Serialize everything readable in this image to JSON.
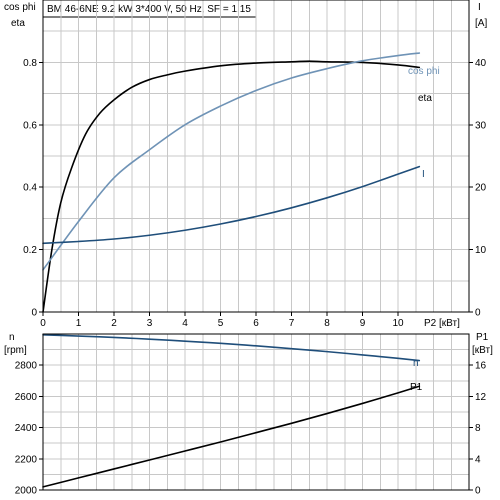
{
  "header": {
    "title": "BM 46-6NE   9.2 kW   3*400 V, 50 Hz, SF = 1.15"
  },
  "colors": {
    "eta": "#000000",
    "cos_phi": "#6f93b6",
    "current": "#1f4e7a",
    "speed": "#1f4e7a",
    "power": "#000000",
    "grid": "#c8c8c8"
  },
  "chart_data": [
    {
      "type": "line",
      "xlabel": "P2 [кВт]",
      "ylabel_left": [
        "cos phi",
        "eta"
      ],
      "ylabel_right": [
        "I",
        "[A]"
      ],
      "xlim": [
        0,
        12
      ],
      "ylim_left": [
        0,
        1.0
      ],
      "ylim_right": [
        0,
        50
      ],
      "xticks": [
        0,
        1,
        2,
        3,
        4,
        5,
        6,
        7,
        8,
        9,
        10
      ],
      "yticks_left": [
        0,
        0.2,
        0.4,
        0.6,
        0.8
      ],
      "yticks_right": [
        0,
        10,
        20,
        30,
        40
      ],
      "grid": true,
      "series": [
        {
          "name": "eta",
          "axis": "left",
          "x": [
            0,
            0.25,
            0.5,
            0.8,
            1.2,
            1.6,
            2.0,
            2.5,
            3.0,
            3.5,
            4.0,
            5.0,
            6.0,
            7.0,
            7.5,
            8.0,
            9.0,
            10.0,
            10.6
          ],
          "y": [
            0,
            0.2,
            0.35,
            0.46,
            0.57,
            0.637,
            0.68,
            0.72,
            0.745,
            0.76,
            0.772,
            0.789,
            0.798,
            0.802,
            0.804,
            0.802,
            0.8,
            0.792,
            0.784
          ]
        },
        {
          "name": "cos phi",
          "axis": "left",
          "x": [
            0,
            1,
            2,
            3,
            4,
            5,
            6,
            7,
            8,
            9,
            10,
            10.6
          ],
          "y": [
            0.135,
            0.29,
            0.43,
            0.52,
            0.6,
            0.66,
            0.71,
            0.75,
            0.78,
            0.805,
            0.822,
            0.83
          ]
        },
        {
          "name": "I",
          "axis": "right",
          "x": [
            0,
            1,
            2,
            3,
            4,
            5,
            6,
            7,
            8,
            9,
            10,
            10.6
          ],
          "y": [
            11.0,
            11.3,
            11.7,
            12.3,
            13.1,
            14.1,
            15.3,
            16.7,
            18.3,
            20.1,
            22.1,
            23.3
          ]
        }
      ]
    },
    {
      "type": "line",
      "xlim": [
        0,
        12
      ],
      "ylabel_left": [
        "n",
        "[rpm]"
      ],
      "ylabel_right": [
        "P1",
        "[кВт]"
      ],
      "ylim_left": [
        2000,
        3000
      ],
      "ylim_right": [
        0,
        20
      ],
      "yticks_left": [
        2000,
        2200,
        2400,
        2600,
        2800
      ],
      "yticks_right": [
        0,
        4,
        8,
        12,
        16
      ],
      "grid": true,
      "series": [
        {
          "name": "n",
          "axis": "left",
          "x": [
            0,
            1,
            2,
            3,
            4,
            5,
            6,
            7,
            8,
            9,
            10,
            10.6
          ],
          "y": [
            2995,
            2987,
            2978,
            2967,
            2954,
            2940,
            2924,
            2906,
            2887,
            2866,
            2844,
            2830
          ]
        },
        {
          "name": "P1",
          "axis": "right",
          "x": [
            0,
            1,
            2,
            3,
            4,
            5,
            6,
            7,
            8,
            9,
            10,
            10.6
          ],
          "y": [
            0.4,
            1.55,
            2.7,
            3.85,
            5.0,
            6.15,
            7.35,
            8.55,
            9.8,
            11.1,
            12.45,
            13.3
          ]
        }
      ]
    }
  ]
}
